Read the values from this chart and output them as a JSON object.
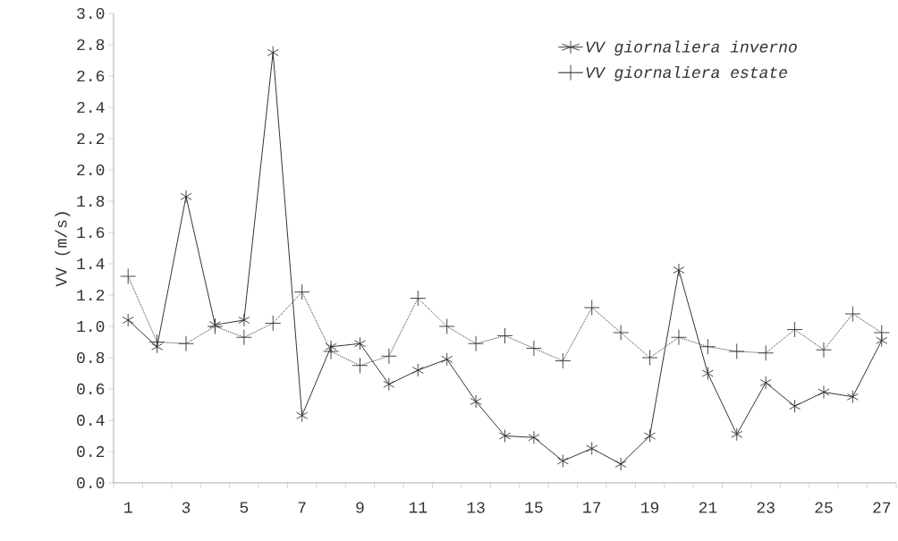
{
  "chart_data": {
    "type": "line",
    "ylabel": "VV (m/s)",
    "categories": [
      "1",
      null,
      "3",
      null,
      "5",
      null,
      "7",
      null,
      "9",
      null,
      "11",
      null,
      "13",
      null,
      "15",
      null,
      "17",
      null,
      "19",
      null,
      "21",
      null,
      "23",
      null,
      "25",
      null,
      "27"
    ],
    "series": [
      {
        "name": "VV giornaliera inverno",
        "color": "#333333",
        "marker": "cross",
        "line_style": "solid",
        "values": [
          1.04,
          0.87,
          1.83,
          1.01,
          1.04,
          2.75,
          0.43,
          0.87,
          0.89,
          0.63,
          0.72,
          0.79,
          0.52,
          0.3,
          0.29,
          0.14,
          0.22,
          0.12,
          0.3,
          1.36,
          0.7,
          0.31,
          0.64,
          0.49,
          0.58,
          0.55,
          0.91
        ]
      },
      {
        "name": "VV giornaliera estate",
        "color": "#333333",
        "marker": "cross",
        "line_style": "dotted",
        "values": [
          1.32,
          0.9,
          0.89,
          1.0,
          0.93,
          1.02,
          1.22,
          0.84,
          0.75,
          0.81,
          1.18,
          1.0,
          0.89,
          0.94,
          0.86,
          0.78,
          1.12,
          0.96,
          0.8,
          0.93,
          0.87,
          0.84,
          0.83,
          0.98,
          0.85,
          1.08,
          0.96
        ]
      }
    ],
    "ylim": [
      0,
      3.0
    ],
    "yticks": [
      {
        "value": 0,
        "label": "0.0"
      },
      {
        "value": 0.2,
        "label": "0.2"
      },
      {
        "value": 0.4,
        "label": "0.4"
      },
      {
        "value": 0.6,
        "label": "0.6"
      },
      {
        "value": 0.8,
        "label": "0.8"
      },
      {
        "value": 1.0,
        "label": "1.0"
      },
      {
        "value": 1.2,
        "label": "1.2"
      },
      {
        "value": 1.4,
        "label": "1.4"
      },
      {
        "value": 1.6,
        "label": "1.6"
      },
      {
        "value": 1.8,
        "label": "1.8"
      },
      {
        "value": 2.0,
        "label": "2.0"
      },
      {
        "value": 2.2,
        "label": "2.2"
      },
      {
        "value": 2.4,
        "label": "2.4"
      },
      {
        "value": 2.6,
        "label": "2.6"
      },
      {
        "value": 2.8,
        "label": "2.8"
      },
      {
        "value": 3.0,
        "label": "3.0"
      }
    ],
    "grid": false,
    "legend": "top right"
  }
}
